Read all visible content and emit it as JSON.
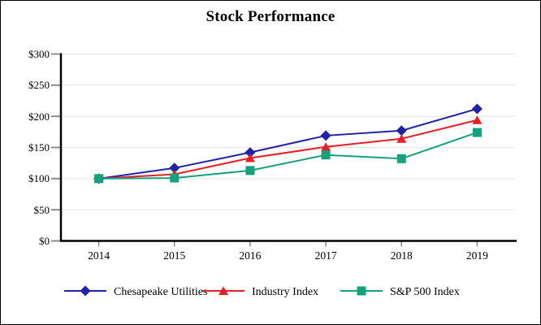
{
  "chart_data": {
    "type": "line",
    "title": "Stock Performance",
    "categories": [
      "2014",
      "2015",
      "2016",
      "2017",
      "2018",
      "2019"
    ],
    "series": [
      {
        "name": "Chesapeake Utilities",
        "marker": "diamond",
        "color": "#1F23A8",
        "values": [
          100,
          117,
          142,
          169,
          177,
          212
        ]
      },
      {
        "name": "Industry Index",
        "marker": "triangle",
        "color": "#EC1C24",
        "values": [
          100,
          107,
          133,
          151,
          164,
          194
        ]
      },
      {
        "name": "S&P 500 Index",
        "marker": "square",
        "color": "#14A17C",
        "values": [
          100,
          101,
          113,
          138,
          132,
          174
        ]
      }
    ],
    "y_axis": {
      "min": 0,
      "max": 300,
      "step": 50,
      "tick_labels": [
        "$0",
        "$50",
        "$100",
        "$150",
        "$200",
        "$250",
        "$300"
      ]
    },
    "x_axis": {
      "tick_labels": [
        "2014",
        "2015",
        "2016",
        "2017",
        "2018",
        "2019"
      ]
    },
    "grid": "horizontal",
    "legend_position": "bottom",
    "colors": {
      "axis": "#000000",
      "gridline": "#E3E3E3",
      "tick": "#8C8C8C",
      "background": "#FFFFFF",
      "border": "#000000"
    }
  }
}
